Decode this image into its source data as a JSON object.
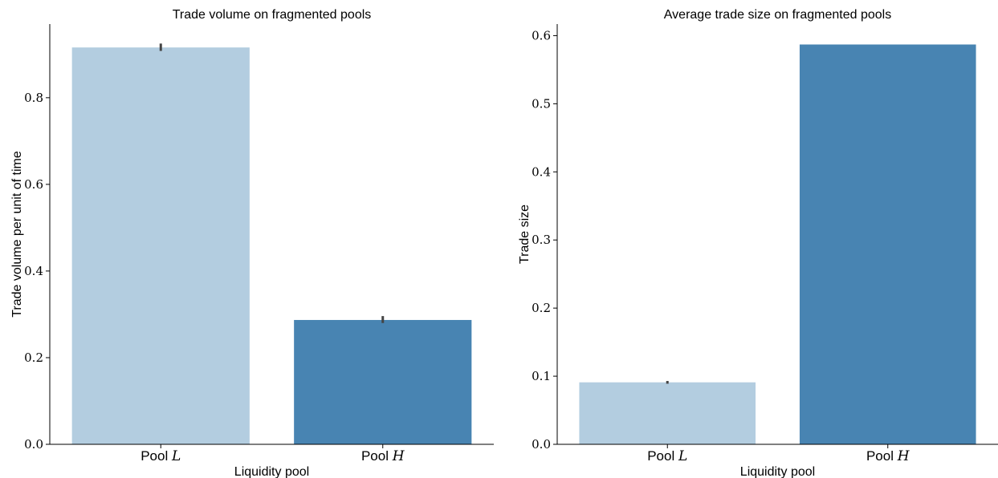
{
  "chart_data": [
    {
      "type": "bar",
      "title": "Trade volume on fragmented pools",
      "xlabel": "Liquidity pool",
      "ylabel": "Trade volume per unit of time",
      "categories": [
        {
          "prefix": "Pool",
          "symbol": "L"
        },
        {
          "prefix": "Pool",
          "symbol": "H"
        }
      ],
      "values": [
        0.916,
        0.287
      ],
      "error_low": [
        0.908,
        0.28
      ],
      "error_high": [
        0.925,
        0.296
      ],
      "colors": [
        "#b3cde0",
        "#4884b2"
      ],
      "ylim": [
        0,
        0.97
      ],
      "yticks": [
        0.0,
        0.2,
        0.4,
        0.6,
        0.8
      ],
      "ytick_labels": [
        "0.0",
        "0.2",
        "0.4",
        "0.6",
        "0.8"
      ],
      "grid": false,
      "legend": "none"
    },
    {
      "type": "bar",
      "title": "Average trade size on fragmented pools",
      "xlabel": "Liquidity pool",
      "ylabel": "Trade size",
      "categories": [
        {
          "prefix": "Pool",
          "symbol": "L"
        },
        {
          "prefix": "Pool",
          "symbol": "H"
        }
      ],
      "values": [
        0.091,
        0.587
      ],
      "error_low": [
        0.089,
        null
      ],
      "error_high": [
        0.093,
        null
      ],
      "colors": [
        "#b3cde0",
        "#4884b2"
      ],
      "ylim": [
        0,
        0.617
      ],
      "yticks": [
        0.0,
        0.1,
        0.2,
        0.3,
        0.4,
        0.5,
        0.6
      ],
      "ytick_labels": [
        "0.0",
        "0.1",
        "0.2",
        "0.3",
        "0.4",
        "0.5",
        "0.6"
      ],
      "grid": false,
      "legend": "none"
    }
  ]
}
